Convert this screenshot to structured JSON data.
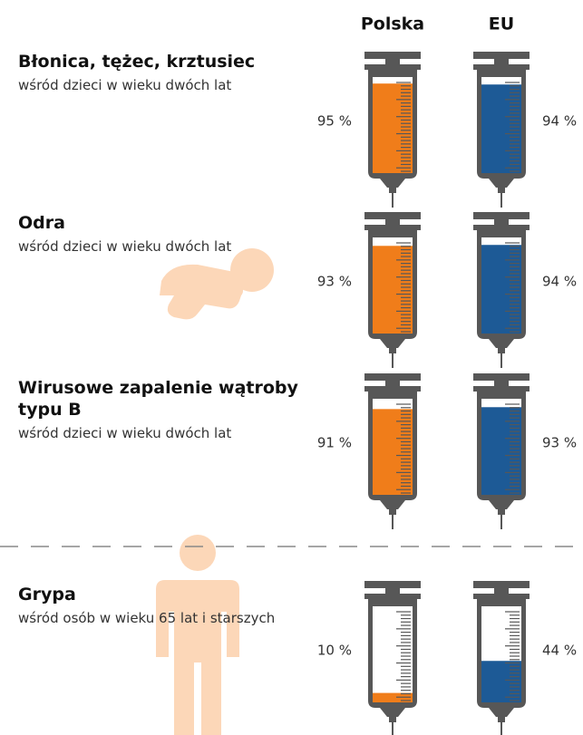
{
  "chart_data": {
    "type": "bar",
    "categories": [
      "Błonica, tężec, krztusiec",
      "Odra",
      "Wirusowe zapalenie wątroby typu B",
      "Grypa"
    ],
    "subtitles": [
      "wśród dzieci w wieku dwóch lat",
      "wśród dzieci w wieku dwóch lat",
      "wśród dzieci w wieku dwóch lat",
      "wśród osób w wieku 65 lat i starszych"
    ],
    "series": [
      {
        "name": "Polska",
        "color": "#f07d1a",
        "values": [
          95,
          93,
          91,
          10
        ],
        "value_labels": [
          "95 %",
          "93 %",
          "91 %",
          "10 %"
        ]
      },
      {
        "name": "EU",
        "color": "#1d5a96",
        "values": [
          94,
          94,
          93,
          44
        ],
        "value_labels": [
          "94 %",
          "94 %",
          "93 %",
          "44 %"
        ]
      }
    ],
    "ylim": [
      0,
      100
    ]
  }
}
